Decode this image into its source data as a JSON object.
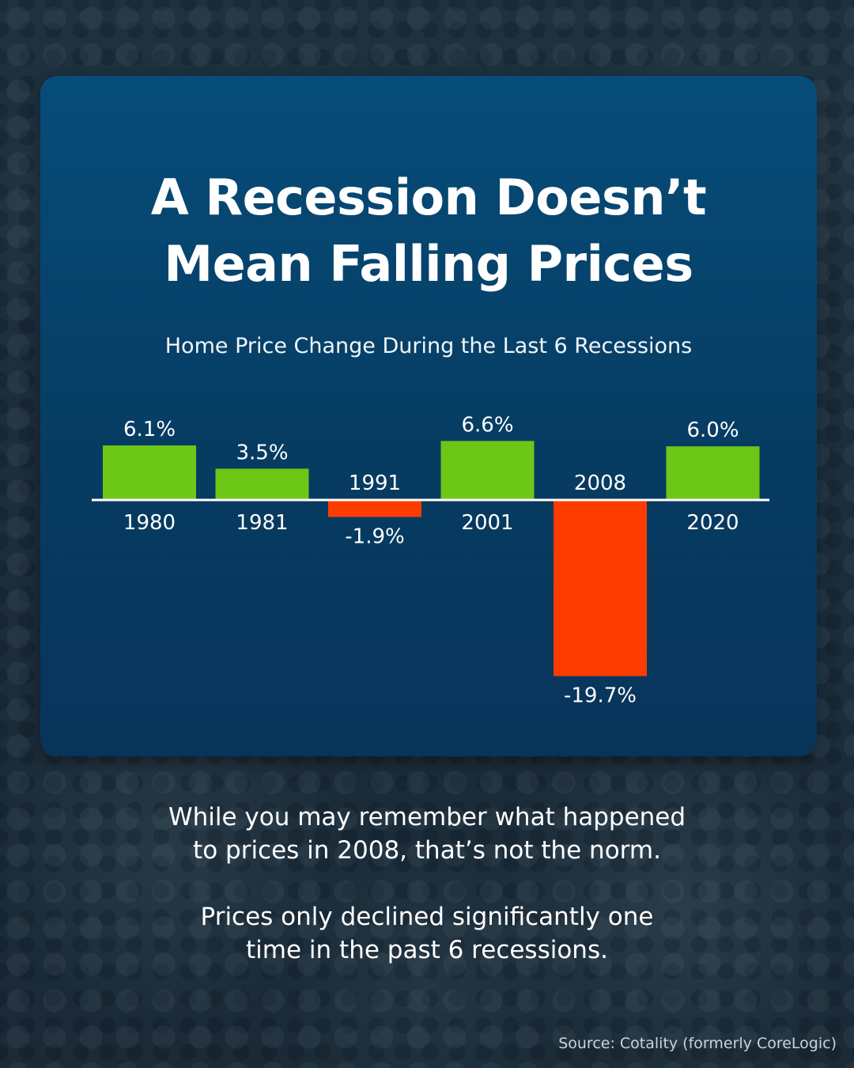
{
  "title_lines": [
    "A Recession Doesn’t",
    "Mean Falling Prices"
  ],
  "chart_data": {
    "type": "bar",
    "title": "Home Price Change During the Last 6 Recessions",
    "categories": [
      "1980",
      "1981",
      "1991",
      "2001",
      "2008",
      "2020"
    ],
    "values": [
      6.1,
      3.5,
      -1.9,
      6.6,
      -19.7,
      6.0
    ],
    "value_labels": [
      "6.1%",
      "3.5%",
      "-1.9%",
      "6.6%",
      "-19.7%",
      "6.0%"
    ],
    "ylim": [
      -19.7,
      6.6
    ],
    "grid": false,
    "positive_color": "#6cc717",
    "negative_color": "#ff3c00"
  },
  "body_paragraphs": [
    [
      "While you may remember what happened",
      "to prices in 2008, that’s not the norm."
    ],
    [
      "Prices only declined significantly one",
      "time in the past 6 recessions."
    ]
  ],
  "source": "Source: Cotality (formerly CoreLogic)"
}
